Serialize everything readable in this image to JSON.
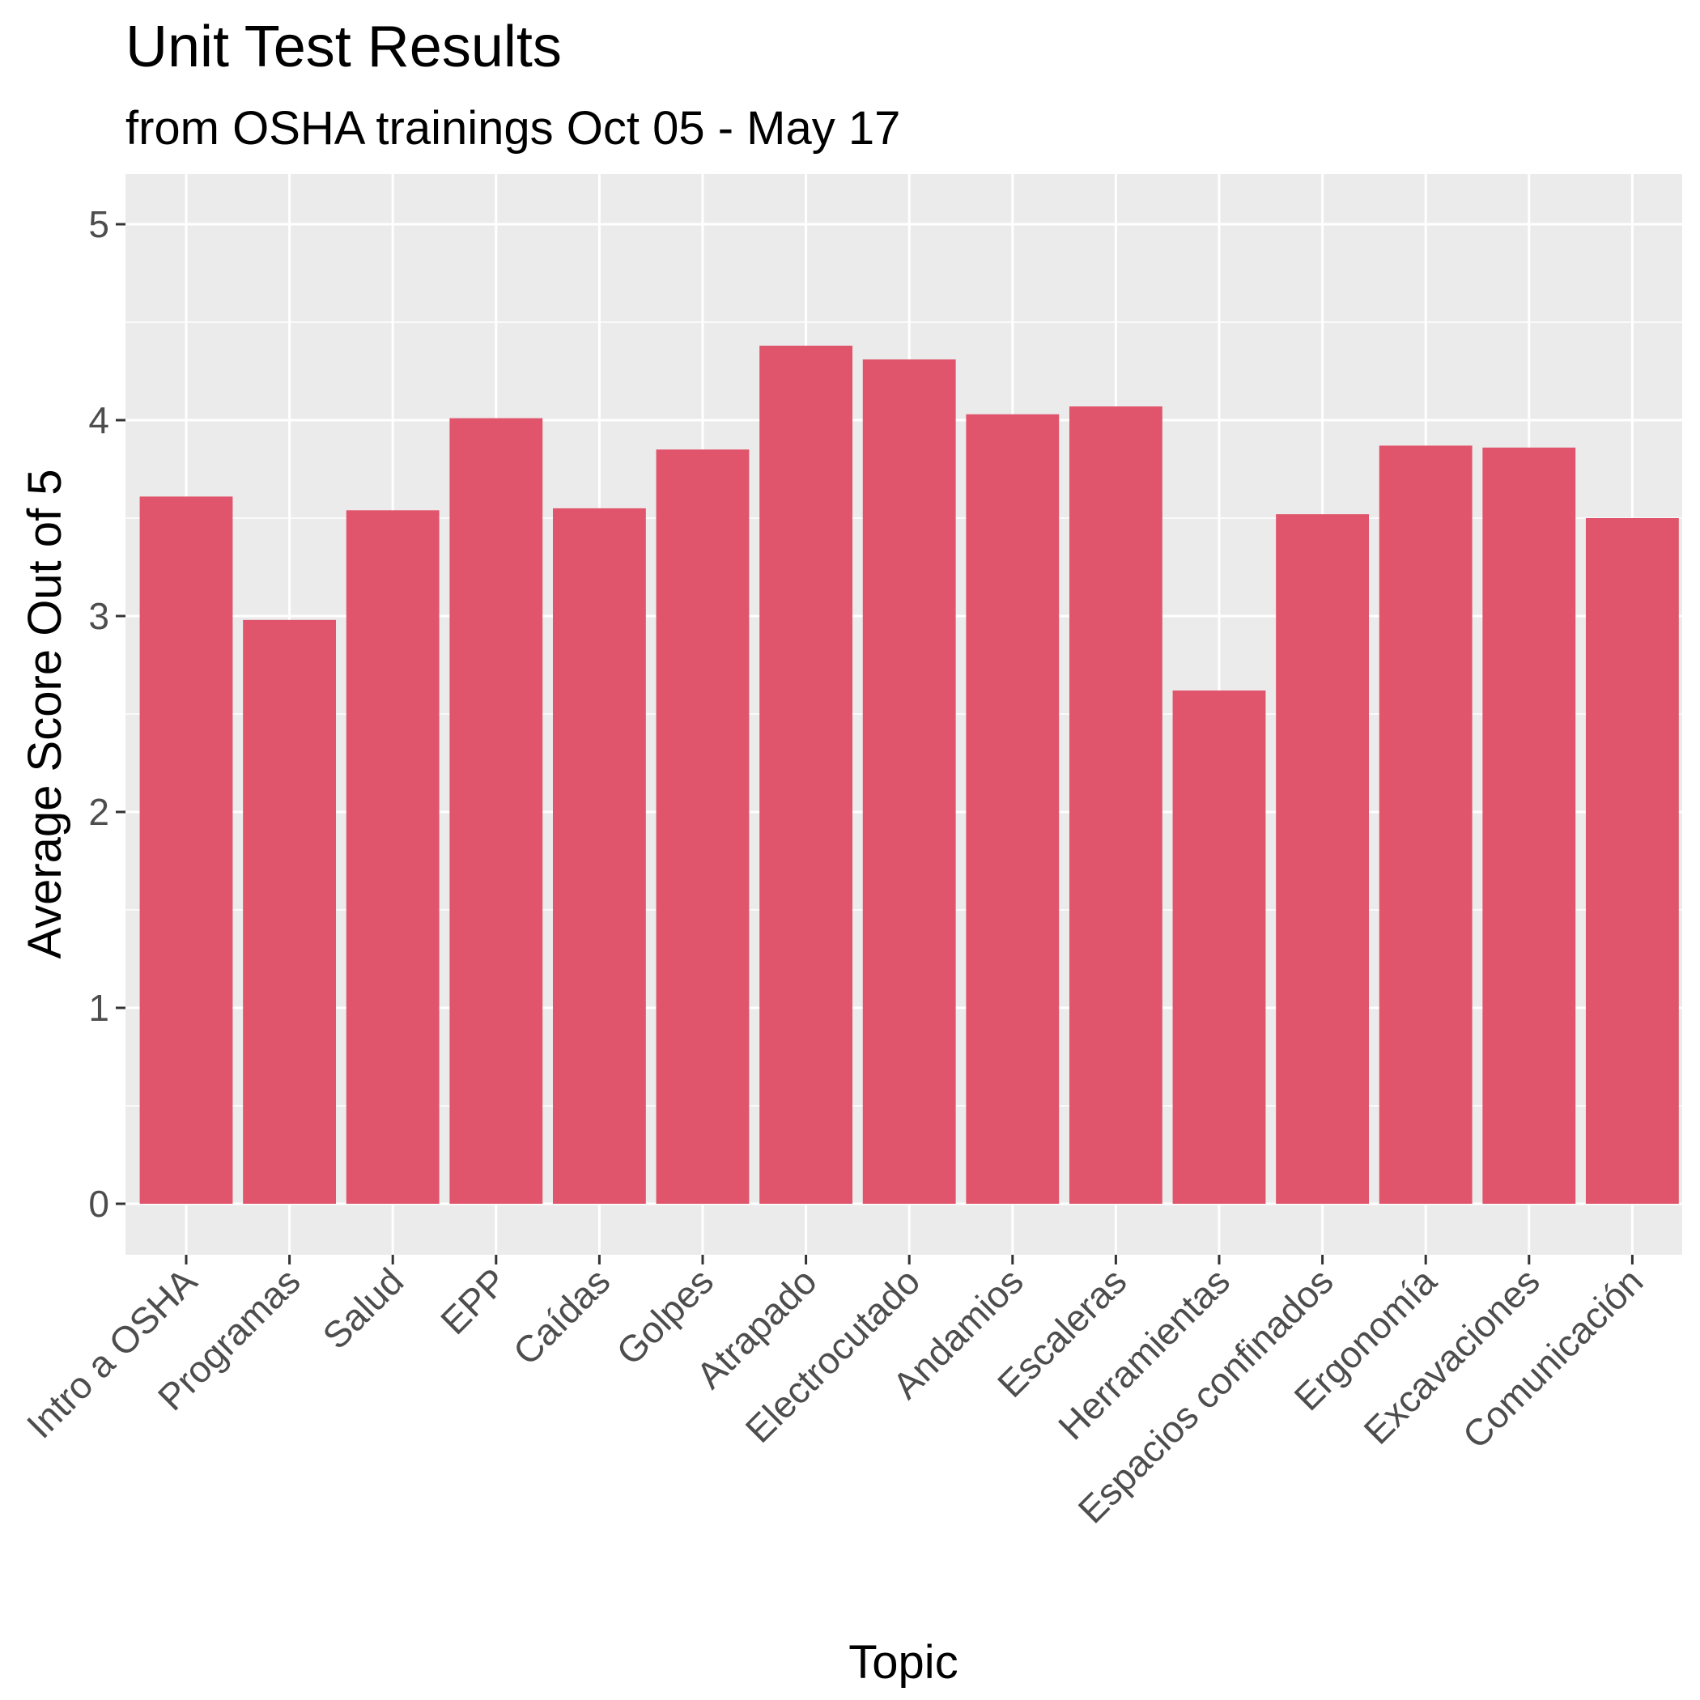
{
  "chart_data": {
    "type": "bar",
    "title": "Unit Test Results",
    "subtitle": "from OSHA trainings Oct 05 - May 17",
    "xlabel": "Topic",
    "ylabel": "Average Score Out of 5",
    "categories": [
      "Intro a OSHA",
      "Programas",
      "Salud",
      "EPP",
      "Caídas",
      "Golpes",
      "Atrapado",
      "Electrocutado",
      "Andamios",
      "Escaleras",
      "Herramientas",
      "Espacios confinados",
      "Ergonomía",
      "Excavaciones",
      "Comunicación"
    ],
    "values": [
      3.61,
      2.98,
      3.54,
      4.01,
      3.55,
      3.85,
      4.38,
      4.31,
      4.03,
      4.07,
      2.62,
      3.52,
      3.87,
      3.86,
      3.5
    ],
    "ylim": [
      0,
      5
    ],
    "yticks": [
      0,
      1,
      2,
      3,
      4,
      5
    ],
    "grid": true,
    "legend": "none",
    "colors": {
      "bar": "#E0556B",
      "panel": "#EBEBEB",
      "grid": "#FFFFFF"
    }
  }
}
